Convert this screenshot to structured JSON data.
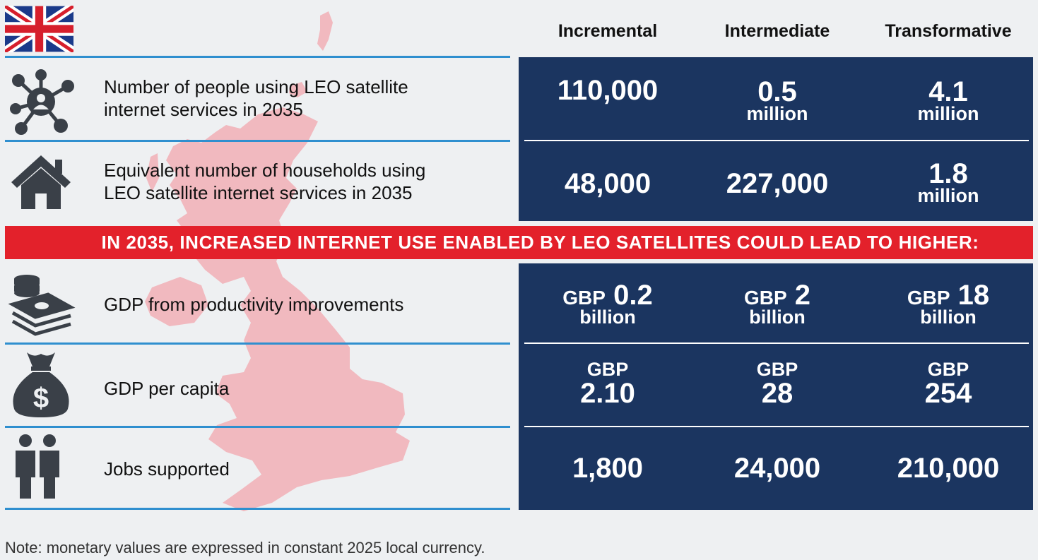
{
  "flag_icon": "uk-flag-icon",
  "map_icon": "uk-map-silhouette",
  "columns": [
    "Incremental",
    "Intermediate",
    "Transformative"
  ],
  "rows_top": [
    {
      "icon": "network-person-icon",
      "label_line1": "Number of people using LEO satellite",
      "label_line2": "internet services in 2035",
      "values": [
        {
          "big": "110,000",
          "sub": ""
        },
        {
          "big": "0.5",
          "sub": "million"
        },
        {
          "big": "4.1",
          "sub": "million"
        }
      ]
    },
    {
      "icon": "house-icon",
      "label_line1": "Equivalent number of households using",
      "label_line2": "LEO satellite internet services in 2035",
      "values": [
        {
          "big": "48,000",
          "sub": ""
        },
        {
          "big": "227,000",
          "sub": ""
        },
        {
          "big": "1.8",
          "sub": "million"
        }
      ]
    }
  ],
  "banner": "IN 2035, INCREASED INTERNET USE ENABLED BY LEO SATELLITES COULD LEAD TO HIGHER:",
  "rows_bottom": [
    {
      "icon": "coins-cash-icon",
      "label": "GDP from productivity improvements",
      "values": [
        {
          "prefix": "GBP",
          "big": "0.2",
          "sub": "billion"
        },
        {
          "prefix": "GBP",
          "big": "2",
          "sub": "billion"
        },
        {
          "prefix": "GBP",
          "big": "18",
          "sub": "billion"
        }
      ]
    },
    {
      "icon": "money-bag-icon",
      "label": "GDP per capita",
      "values": [
        {
          "top": "GBP",
          "big": "2.10"
        },
        {
          "top": "GBP",
          "big": "28"
        },
        {
          "top": "GBP",
          "big": "254"
        }
      ]
    },
    {
      "icon": "people-icon",
      "label": "Jobs supported",
      "values": [
        {
          "big": "1,800"
        },
        {
          "big": "24,000"
        },
        {
          "big": "210,000"
        }
      ]
    }
  ],
  "note": "Note: monetary values are expressed in constant 2025 local currency.",
  "colors": {
    "navy": "#1b3560",
    "red": "#e3212b",
    "blue_rule": "#2f8fcf",
    "map": "#f1b9bf",
    "icon": "#3a4048"
  }
}
